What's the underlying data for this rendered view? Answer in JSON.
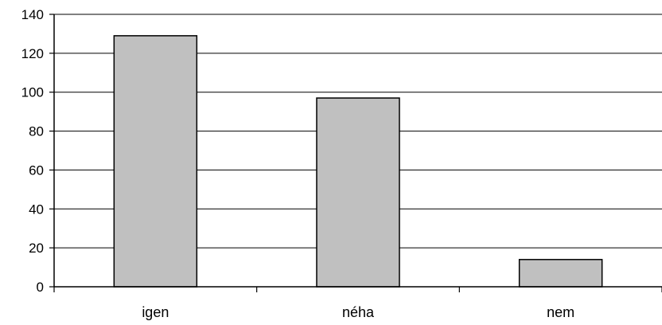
{
  "chart_data": {
    "type": "bar",
    "categories": [
      "igen",
      "néha",
      "nem"
    ],
    "values": [
      129,
      97,
      14
    ],
    "title": "",
    "xlabel": "",
    "ylabel": "",
    "ylim": [
      0,
      140
    ],
    "yticks": [
      0,
      20,
      40,
      60,
      80,
      100,
      120,
      140
    ],
    "grid": true,
    "legend": "none",
    "bar_color": "#c0c0c0",
    "bar_edge_color": "#000000",
    "grid_color": "#000000"
  }
}
